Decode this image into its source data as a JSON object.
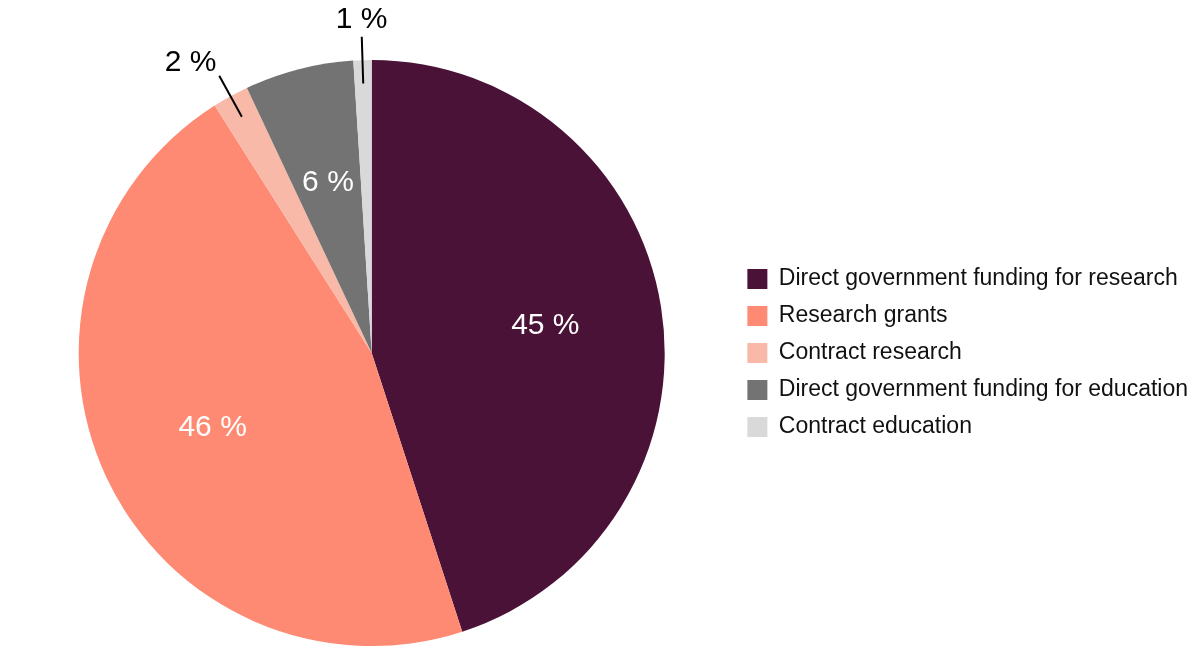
{
  "chart_data": {
    "type": "pie",
    "categories": [
      "Direct government funding for research",
      "Research grants",
      "Contract research",
      "Direct government funding for education",
      "Contract education"
    ],
    "values": [
      45,
      46,
      2,
      6,
      1
    ],
    "colors": [
      "#4b1238",
      "#fe8a74",
      "#f8b9a8",
      "#737373",
      "#d9d9d9"
    ],
    "value_labels": [
      "45 %",
      "46 %",
      "2 %",
      "6 %",
      "1 %"
    ],
    "legend": "right"
  }
}
